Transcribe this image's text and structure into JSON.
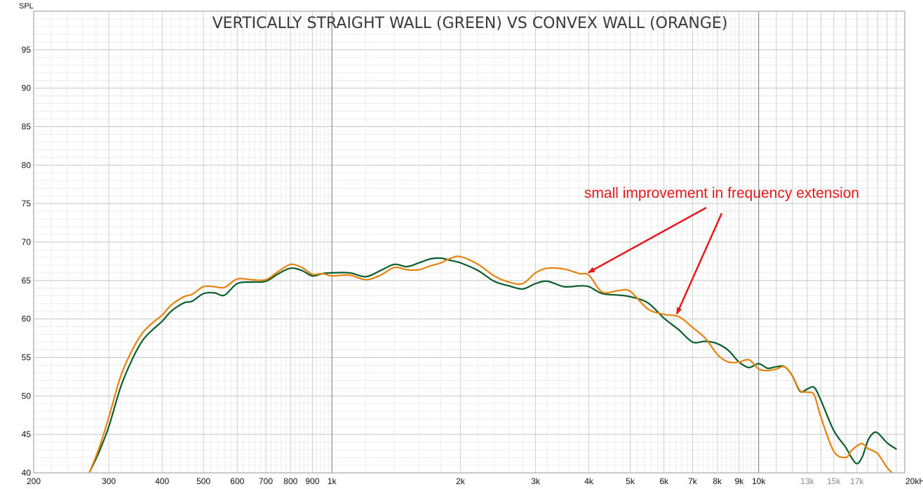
{
  "chart_data": {
    "type": "line",
    "title": "VERTICALLY STRAIGHT WALL (GREEN) VS CONVEX WALL (ORANGE)",
    "ylabel": "SPL",
    "xunit": "Hz",
    "xscale": "log",
    "xlim": [
      200,
      22000
    ],
    "ylim": [
      40,
      100
    ],
    "grid": true,
    "x_ticks": [
      {
        "value": 200,
        "label": "200"
      },
      {
        "value": 300,
        "label": "300"
      },
      {
        "value": 400,
        "label": "400"
      },
      {
        "value": 500,
        "label": "500"
      },
      {
        "value": 600,
        "label": "600"
      },
      {
        "value": 700,
        "label": "700"
      },
      {
        "value": 800,
        "label": "800"
      },
      {
        "value": 900,
        "label": "900"
      },
      {
        "value": 1000,
        "label": "1k"
      },
      {
        "value": 2000,
        "label": "2k"
      },
      {
        "value": 3000,
        "label": "3k"
      },
      {
        "value": 4000,
        "label": "4k"
      },
      {
        "value": 5000,
        "label": "5k"
      },
      {
        "value": 6000,
        "label": "6k"
      },
      {
        "value": 7000,
        "label": "7k"
      },
      {
        "value": 8000,
        "label": "8k"
      },
      {
        "value": 9000,
        "label": "9k"
      },
      {
        "value": 10000,
        "label": "10k"
      },
      {
        "value": 13000,
        "label": "13k",
        "dim": true
      },
      {
        "value": 15000,
        "label": "15k",
        "dim": true
      },
      {
        "value": 17000,
        "label": "17k",
        "dim": true
      },
      {
        "value": 20000,
        "label": "20kHz"
      }
    ],
    "y_ticks": [
      40,
      45,
      50,
      55,
      60,
      65,
      70,
      75,
      80,
      85,
      90,
      95
    ],
    "series": [
      {
        "name": "VERTICALLY STRAIGHT WALL",
        "color": "#0b5e2c",
        "points": [
          [
            270,
            40
          ],
          [
            285,
            42.8
          ],
          [
            300,
            46
          ],
          [
            320,
            51.2
          ],
          [
            340,
            54.7
          ],
          [
            360,
            57.2
          ],
          [
            380,
            58.6
          ],
          [
            400,
            59.7
          ],
          [
            420,
            61
          ],
          [
            450,
            62.1
          ],
          [
            470,
            62.3
          ],
          [
            500,
            63.3
          ],
          [
            530,
            63.4
          ],
          [
            560,
            63.1
          ],
          [
            600,
            64.6
          ],
          [
            650,
            64.8
          ],
          [
            700,
            64.9
          ],
          [
            750,
            65.9
          ],
          [
            800,
            66.6
          ],
          [
            850,
            66.3
          ],
          [
            900,
            65.6
          ],
          [
            950,
            65.9
          ],
          [
            1000,
            66
          ],
          [
            1100,
            66
          ],
          [
            1200,
            65.5
          ],
          [
            1300,
            66.3
          ],
          [
            1400,
            67.1
          ],
          [
            1500,
            66.8
          ],
          [
            1600,
            67.3
          ],
          [
            1700,
            67.8
          ],
          [
            1800,
            67.9
          ],
          [
            1900,
            67.6
          ],
          [
            2000,
            67.3
          ],
          [
            2200,
            66.3
          ],
          [
            2400,
            64.9
          ],
          [
            2600,
            64.3
          ],
          [
            2800,
            63.9
          ],
          [
            3000,
            64.6
          ],
          [
            3200,
            64.9
          ],
          [
            3500,
            64.2
          ],
          [
            3800,
            64.3
          ],
          [
            4000,
            64.2
          ],
          [
            4300,
            63.3
          ],
          [
            4700,
            63.1
          ],
          [
            5000,
            62.9
          ],
          [
            5500,
            62.1
          ],
          [
            6000,
            60.1
          ],
          [
            6500,
            58.6
          ],
          [
            7000,
            57
          ],
          [
            7500,
            57.1
          ],
          [
            8000,
            56.8
          ],
          [
            8500,
            55.9
          ],
          [
            9000,
            54.4
          ],
          [
            9500,
            53.7
          ],
          [
            10000,
            54.2
          ],
          [
            10500,
            53.6
          ],
          [
            11000,
            53.8
          ],
          [
            11500,
            53.8
          ],
          [
            12000,
            52.6
          ],
          [
            12500,
            50.6
          ],
          [
            13000,
            50.9
          ],
          [
            13500,
            51.1
          ],
          [
            14000,
            49.4
          ],
          [
            15000,
            45.5
          ],
          [
            16000,
            43.3
          ],
          [
            16500,
            42
          ],
          [
            17000,
            41.2
          ],
          [
            17500,
            42.1
          ],
          [
            18000,
            44.1
          ],
          [
            18500,
            45.1
          ],
          [
            19000,
            45.2
          ],
          [
            20000,
            43.9
          ],
          [
            21000,
            43.1
          ]
        ]
      },
      {
        "name": "CONVEX WALL",
        "color": "#e8820c",
        "points": [
          [
            270,
            40
          ],
          [
            285,
            43.3
          ],
          [
            300,
            47.2
          ],
          [
            320,
            52.6
          ],
          [
            340,
            55.9
          ],
          [
            360,
            58.2
          ],
          [
            380,
            59.5
          ],
          [
            400,
            60.5
          ],
          [
            420,
            61.8
          ],
          [
            450,
            62.9
          ],
          [
            470,
            63.2
          ],
          [
            500,
            64.2
          ],
          [
            530,
            64.2
          ],
          [
            560,
            64.1
          ],
          [
            600,
            65.2
          ],
          [
            650,
            65.1
          ],
          [
            700,
            65.1
          ],
          [
            750,
            66.2
          ],
          [
            800,
            67.1
          ],
          [
            850,
            66.7
          ],
          [
            900,
            65.8
          ],
          [
            950,
            65.9
          ],
          [
            1000,
            65.6
          ],
          [
            1100,
            65.7
          ],
          [
            1200,
            65.1
          ],
          [
            1300,
            65.7
          ],
          [
            1400,
            66.7
          ],
          [
            1500,
            66.4
          ],
          [
            1600,
            66.4
          ],
          [
            1700,
            66.9
          ],
          [
            1800,
            67.3
          ],
          [
            1900,
            67.9
          ],
          [
            2000,
            68.1
          ],
          [
            2200,
            67.1
          ],
          [
            2400,
            65.6
          ],
          [
            2600,
            64.8
          ],
          [
            2800,
            64.6
          ],
          [
            3000,
            66
          ],
          [
            3200,
            66.6
          ],
          [
            3500,
            66.5
          ],
          [
            3800,
            65.9
          ],
          [
            4000,
            65.7
          ],
          [
            4300,
            63.5
          ],
          [
            4700,
            63.7
          ],
          [
            5000,
            63.6
          ],
          [
            5500,
            61.3
          ],
          [
            6000,
            60.6
          ],
          [
            6500,
            60.3
          ],
          [
            7000,
            58.9
          ],
          [
            7500,
            57.5
          ],
          [
            8000,
            55.4
          ],
          [
            8500,
            54.4
          ],
          [
            9000,
            54.4
          ],
          [
            9500,
            54.7
          ],
          [
            10000,
            53.5
          ],
          [
            10500,
            53.3
          ],
          [
            11000,
            53.5
          ],
          [
            11500,
            53.8
          ],
          [
            12000,
            52.6
          ],
          [
            12500,
            50.7
          ],
          [
            13000,
            50.5
          ],
          [
            13500,
            50.1
          ],
          [
            14000,
            47.2
          ],
          [
            15000,
            42.8
          ],
          [
            16000,
            42
          ],
          [
            16500,
            42.9
          ],
          [
            17000,
            43.5
          ],
          [
            17500,
            43.8
          ],
          [
            18000,
            43.2
          ],
          [
            19000,
            42.5
          ],
          [
            20000,
            40.7
          ],
          [
            21000,
            39.5
          ]
        ]
      }
    ],
    "annotation": {
      "text": "small improvement in frequency extension",
      "color": "#e8191c",
      "arrows": [
        {
          "series": "CONVEX WALL",
          "x": 3950,
          "y": 65.9
        },
        {
          "series": "CONVEX WALL",
          "x": 6400,
          "y": 60.4
        }
      ]
    }
  }
}
